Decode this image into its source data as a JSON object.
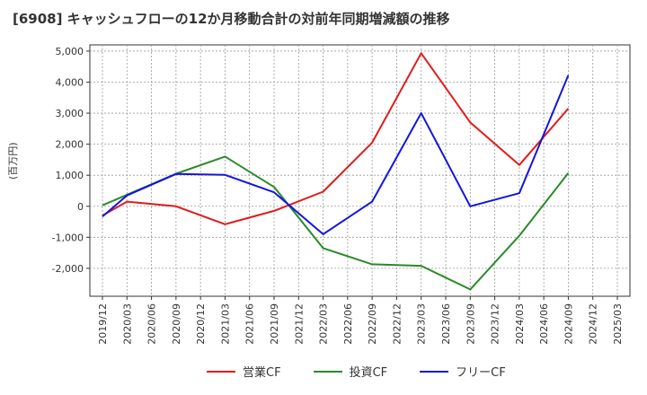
{
  "chart_data": {
    "type": "line",
    "title": "[6908]  キャッシュフローの12か月移動合計の対前年同期増減額の推移",
    "ylabel": "(百万円)",
    "ylim": [
      -2900,
      5200
    ],
    "yticks": [
      5000,
      4000,
      3000,
      2000,
      1000,
      0,
      -1000,
      -2000
    ],
    "ytick_labels": [
      "5,000",
      "4,000",
      "3,000",
      "2,000",
      "1,000",
      "0",
      "-1,000",
      "-2,000"
    ],
    "categories": [
      "2019/12",
      "2020/03",
      "2020/06",
      "2020/09",
      "2020/12",
      "2021/03",
      "2021/06",
      "2021/09",
      "2021/12",
      "2022/03",
      "2022/06",
      "2022/09",
      "2022/12",
      "2023/03",
      "2023/06",
      "2023/09",
      "2023/12",
      "2024/03",
      "2024/06",
      "2024/09",
      "2024/12",
      "2025/03"
    ],
    "grid": true,
    "legend_position": "bottom",
    "series": [
      {
        "name": "営業CF",
        "color": "#e31a1c",
        "values": [
          -300,
          150,
          null,
          0,
          null,
          -580,
          null,
          -150,
          null,
          470,
          null,
          2050,
          null,
          4930,
          null,
          2700,
          null,
          1330,
          null,
          3150,
          null,
          null
        ]
      },
      {
        "name": "投資CF",
        "color": "#2a8a2a",
        "values": [
          30,
          null,
          null,
          1050,
          null,
          1600,
          null,
          620,
          null,
          -1350,
          null,
          -1870,
          null,
          -1920,
          null,
          -2680,
          null,
          -950,
          null,
          1070,
          null,
          null
        ]
      },
      {
        "name": "フリーCF",
        "color": "#1414e0",
        "values": [
          -330,
          350,
          null,
          1040,
          null,
          1010,
          null,
          450,
          null,
          -900,
          null,
          150,
          null,
          3000,
          null,
          0,
          null,
          420,
          null,
          4220,
          null,
          null
        ]
      }
    ]
  }
}
